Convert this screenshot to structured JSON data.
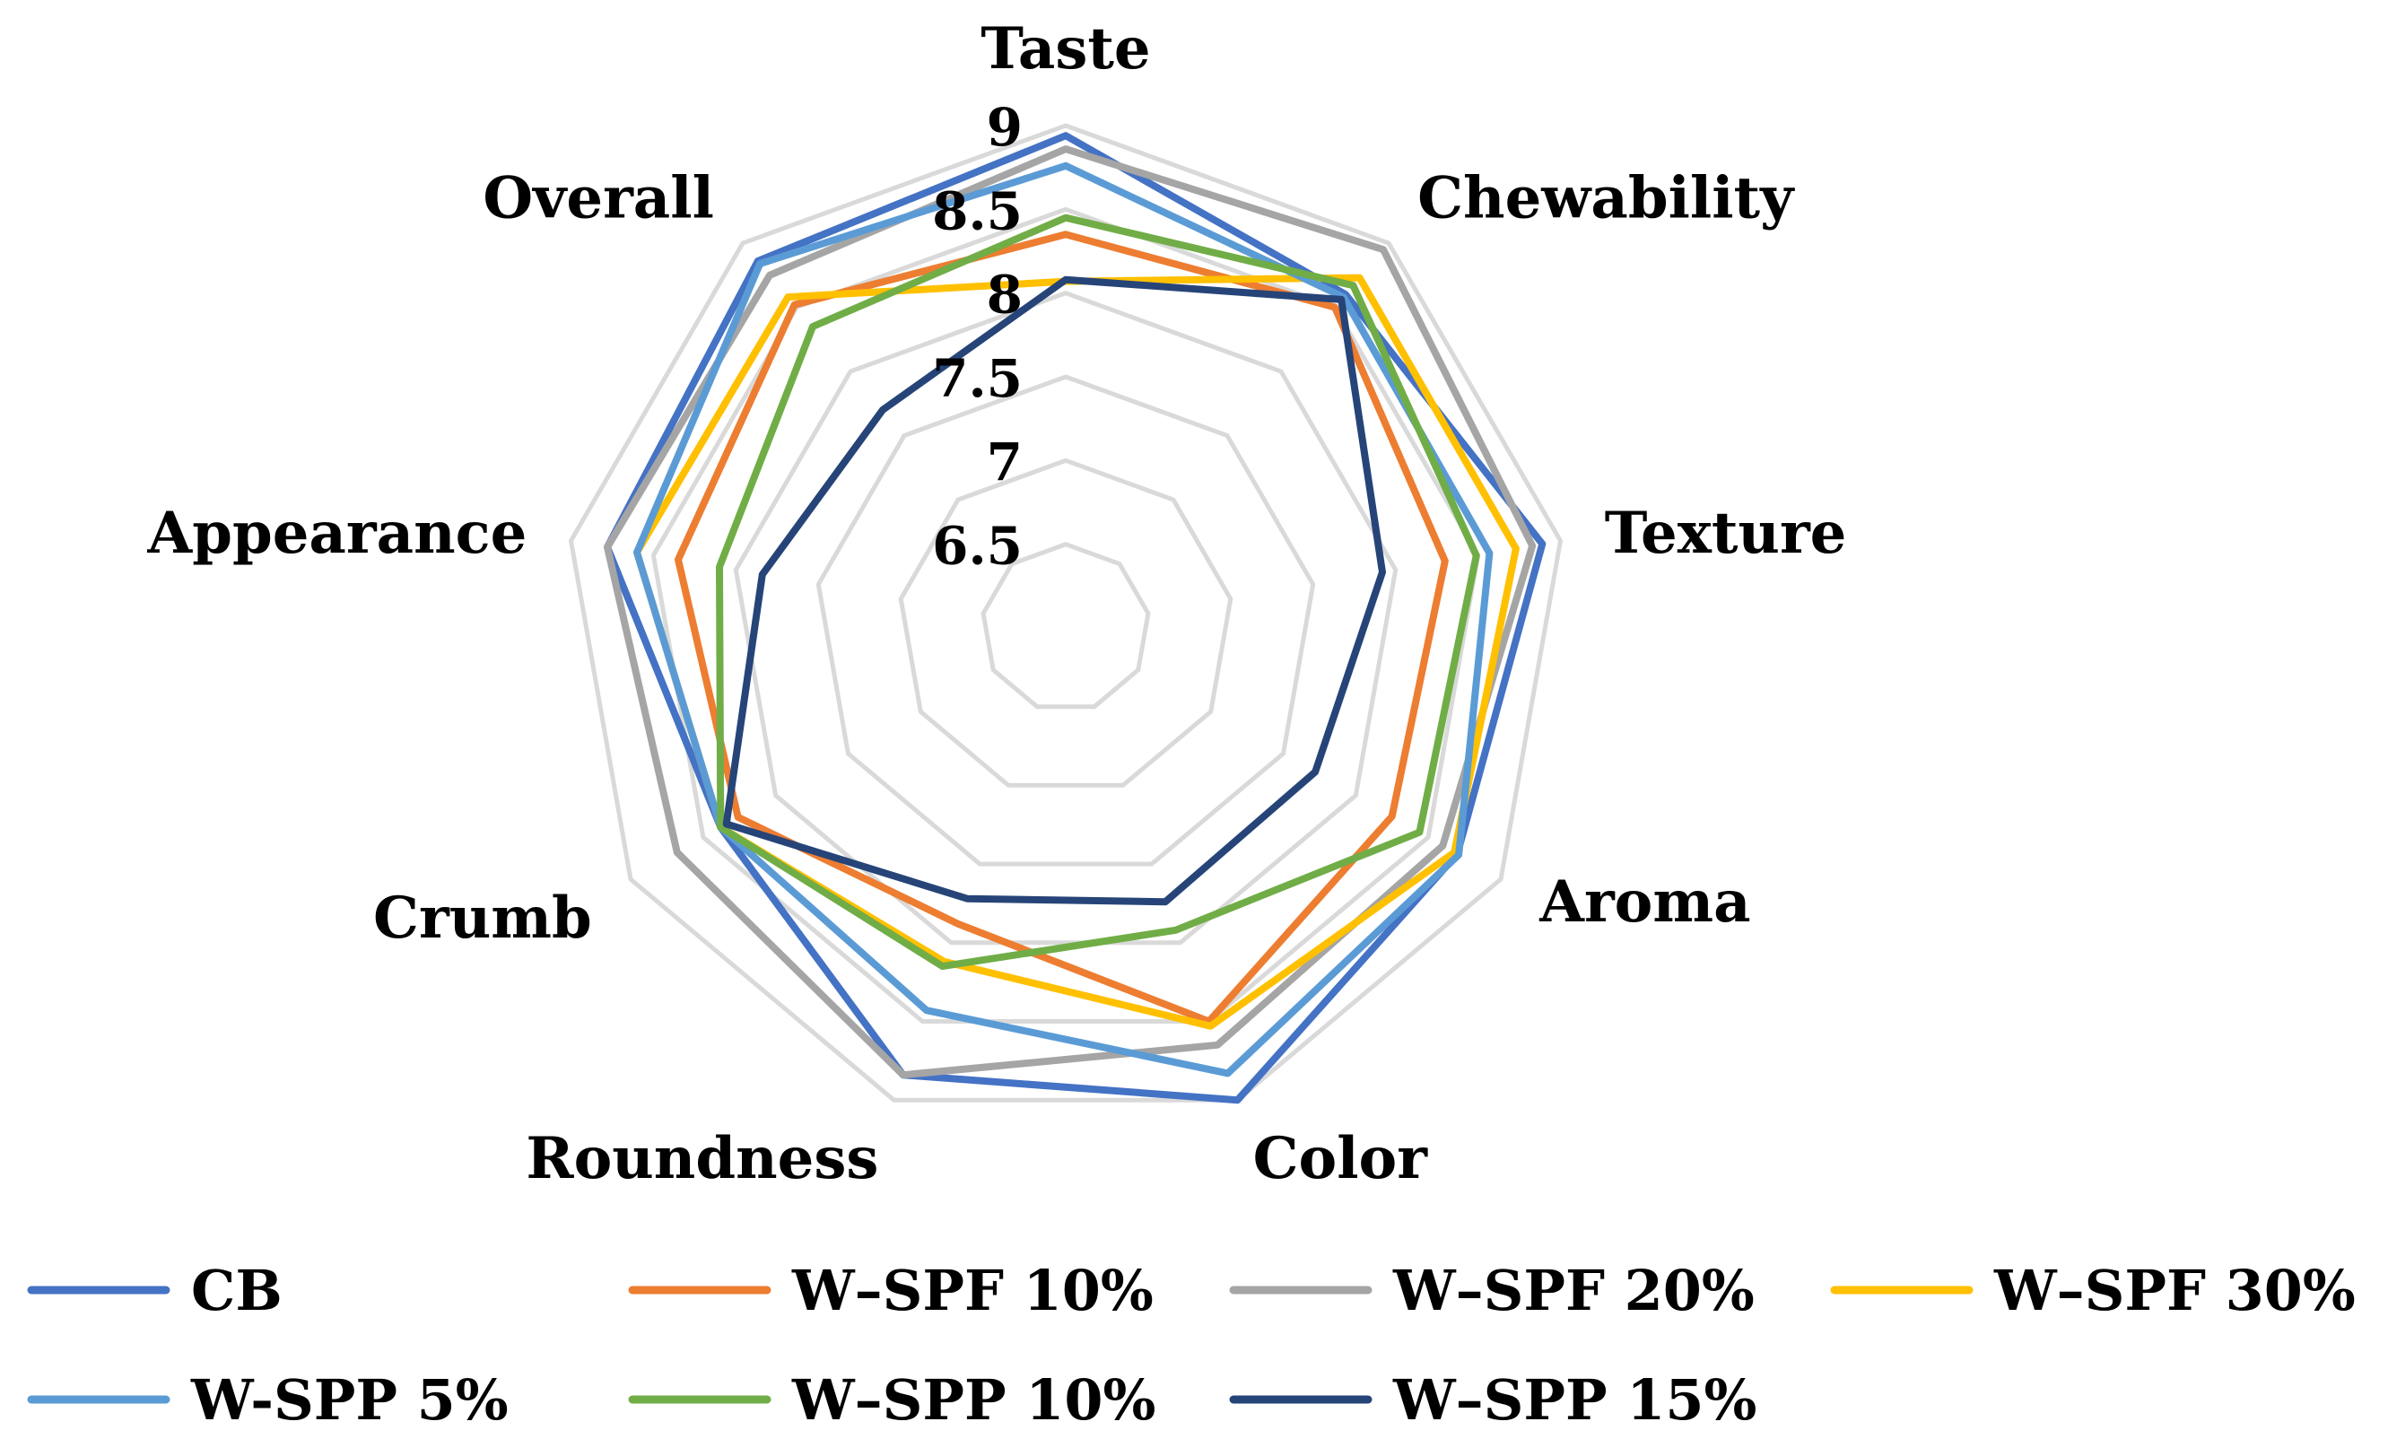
{
  "chart_data": {
    "type": "radar",
    "axes": [
      "Taste",
      "Chewability",
      "Texture",
      "Aroma",
      "Color",
      "Roundness",
      "Crumb",
      "Appearance",
      "Overall"
    ],
    "rlim": [
      6.0,
      9.0
    ],
    "ticks": [
      6.5,
      7,
      7.5,
      8,
      8.5,
      9
    ],
    "tick_labels": [
      "6.5",
      "7",
      "7.5",
      "8",
      "8.5",
      "9"
    ],
    "legend_position": "bottom",
    "series": [
      {
        "name": "CB",
        "color": "#4472C4",
        "values": [
          8.94,
          8.6,
          8.89,
          8.7,
          9.0,
          8.84,
          8.38,
          8.78,
          8.86
        ]
      },
      {
        "name": "W–SPF 10%",
        "color": "#ED7D31",
        "values": [
          8.35,
          8.5,
          8.3,
          8.25,
          8.5,
          7.88,
          8.26,
          8.35,
          8.52
        ]
      },
      {
        "name": "W–SPF 20%",
        "color": "#A5A5A5",
        "values": [
          8.86,
          8.95,
          8.83,
          8.6,
          8.65,
          8.84,
          8.68,
          8.78,
          8.75
        ]
      },
      {
        "name": "W–SPF 30%",
        "color": "#FFC000",
        "values": [
          8.07,
          8.73,
          8.73,
          8.68,
          8.53,
          8.12,
          8.38,
          8.6,
          8.58
        ]
      },
      {
        "name": "W-SPP 5%",
        "color": "#5B9BD5",
        "values": [
          8.76,
          8.58,
          8.57,
          8.71,
          8.83,
          8.43,
          8.38,
          8.6,
          8.84
        ]
      },
      {
        "name": "W–SPP 10%",
        "color": "#70AD47",
        "values": [
          8.45,
          8.67,
          8.49,
          8.44,
          7.92,
          8.15,
          8.38,
          8.1,
          8.35
        ]
      },
      {
        "name": "W–SPP 15%",
        "color": "#264478",
        "values": [
          8.08,
          8.56,
          7.92,
          7.72,
          7.74,
          7.72,
          8.34,
          7.84,
          7.7
        ]
      }
    ]
  }
}
